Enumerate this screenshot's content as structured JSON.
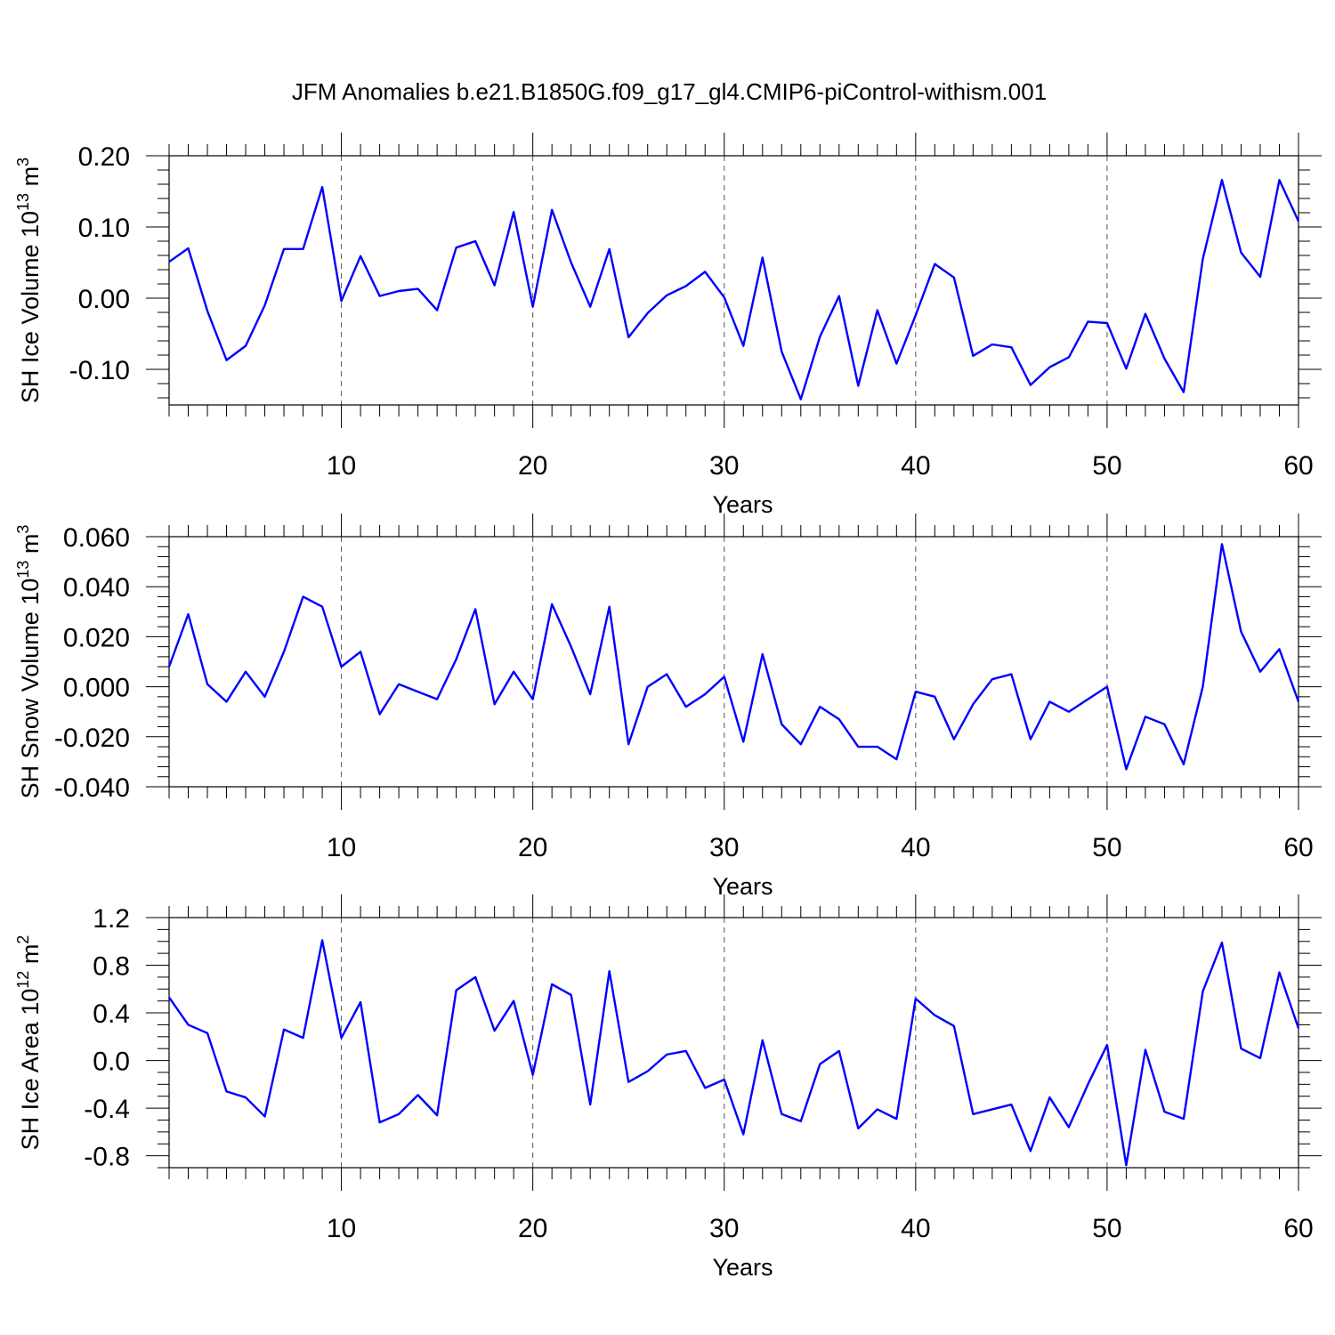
{
  "title": "JFM Anomalies b.e21.B1850G.f09_g17_gl4.CMIP6-piControl-withism.001",
  "colors": {
    "series": "#0000ff",
    "axes": "#000000",
    "grid": "#555555"
  },
  "chart_data": [
    {
      "type": "line",
      "ylabel": "SH Ice Volume 10",
      "ylabel_exponent": "13",
      "ylabel_unit": " m",
      "ylabel_unit_exponent": "3",
      "xlabel": "Years",
      "xlim": [
        1,
        60
      ],
      "ylim": [
        -0.15,
        0.2
      ],
      "x_ticks": [
        10,
        20,
        30,
        40,
        50,
        60
      ],
      "x_tick_labels": [
        "10",
        "20",
        "30",
        "40",
        "50",
        "60"
      ],
      "y_ticks": [
        -0.1,
        0.0,
        0.1,
        0.2
      ],
      "y_tick_labels": [
        "-0.10",
        "0.00",
        "0.10",
        "0.20"
      ],
      "y_minor_step": 0.02,
      "grid": "dashed vertical at major x ticks",
      "series": [
        {
          "x": [
            1,
            2,
            3,
            4,
            5,
            6,
            7,
            8,
            9,
            10,
            11,
            12,
            13,
            14,
            15,
            16,
            17,
            18,
            19,
            20,
            21,
            22,
            23,
            24,
            25,
            26,
            27,
            28,
            29,
            30,
            31,
            32,
            33,
            34,
            35,
            36,
            37,
            38,
            39,
            40,
            41,
            42,
            43,
            44,
            45,
            46,
            47,
            48,
            49,
            50,
            51,
            52,
            53,
            54,
            55,
            56,
            57,
            58,
            59,
            60
          ],
          "values": [
            0.051,
            0.07,
            -0.018,
            -0.087,
            -0.067,
            -0.01,
            0.069,
            0.069,
            0.156,
            -0.004,
            0.059,
            0.003,
            0.01,
            0.013,
            -0.017,
            0.071,
            0.08,
            0.018,
            0.121,
            -0.012,
            0.124,
            0.05,
            -0.012,
            0.069,
            -0.055,
            -0.021,
            0.004,
            0.017,
            0.037,
            0.001,
            -0.067,
            0.057,
            -0.075,
            -0.142,
            -0.054,
            0.003,
            -0.123,
            -0.017,
            -0.092,
            -0.024,
            0.048,
            0.029,
            -0.081,
            -0.065,
            -0.069,
            -0.122,
            -0.097,
            -0.083,
            -0.033,
            -0.035,
            -0.099,
            -0.022,
            -0.085,
            -0.132,
            0.055,
            0.166,
            0.064,
            0.03,
            0.166,
            0.108
          ]
        }
      ]
    },
    {
      "type": "line",
      "ylabel": "SH Snow Volume 10",
      "ylabel_exponent": "13",
      "ylabel_unit": " m",
      "ylabel_unit_exponent": "3",
      "xlabel": "Years",
      "xlim": [
        1,
        60
      ],
      "ylim": [
        -0.04,
        0.06
      ],
      "x_ticks": [
        10,
        20,
        30,
        40,
        50,
        60
      ],
      "x_tick_labels": [
        "10",
        "20",
        "30",
        "40",
        "50",
        "60"
      ],
      "y_ticks": [
        -0.04,
        -0.02,
        0.0,
        0.02,
        0.04,
        0.06
      ],
      "y_tick_labels": [
        "-0.040",
        "-0.020",
        "0.000",
        "0.020",
        "0.040",
        "0.060"
      ],
      "y_minor_step": 0.004,
      "grid": "dashed vertical at major x ticks",
      "series": [
        {
          "x": [
            1,
            2,
            3,
            4,
            5,
            6,
            7,
            8,
            9,
            10,
            11,
            12,
            13,
            14,
            15,
            16,
            17,
            18,
            19,
            20,
            21,
            22,
            23,
            24,
            25,
            26,
            27,
            28,
            29,
            30,
            31,
            32,
            33,
            34,
            35,
            36,
            37,
            38,
            39,
            40,
            41,
            42,
            43,
            44,
            45,
            46,
            47,
            48,
            49,
            50,
            51,
            52,
            53,
            54,
            55,
            56,
            57,
            58,
            59,
            60
          ],
          "values": [
            0.008,
            0.029,
            0.001,
            -0.006,
            0.006,
            -0.004,
            0.014,
            0.036,
            0.032,
            0.008,
            0.014,
            -0.011,
            0.001,
            -0.002,
            -0.005,
            0.011,
            0.031,
            -0.007,
            0.006,
            -0.005,
            0.033,
            0.016,
            -0.003,
            0.032,
            -0.023,
            0.0,
            0.005,
            -0.008,
            -0.003,
            0.004,
            -0.022,
            0.013,
            -0.015,
            -0.023,
            -0.008,
            -0.013,
            -0.024,
            -0.024,
            -0.029,
            -0.002,
            -0.004,
            -0.021,
            -0.007,
            0.003,
            0.005,
            -0.021,
            -0.006,
            -0.01,
            -0.005,
            0.0,
            -0.033,
            -0.012,
            -0.015,
            -0.031,
            0.0,
            0.057,
            0.022,
            0.006,
            0.015,
            -0.006
          ]
        }
      ]
    },
    {
      "type": "line",
      "ylabel": "SH Ice Area 10",
      "ylabel_exponent": "12",
      "ylabel_unit": " m",
      "ylabel_unit_exponent": "2",
      "xlabel": "Years",
      "xlim": [
        1,
        60
      ],
      "ylim": [
        -0.9,
        1.2
      ],
      "x_ticks": [
        10,
        20,
        30,
        40,
        50,
        60
      ],
      "x_tick_labels": [
        "10",
        "20",
        "30",
        "40",
        "50",
        "60"
      ],
      "y_ticks": [
        -0.8,
        -0.4,
        0.0,
        0.4,
        0.8,
        1.2
      ],
      "y_tick_labels": [
        "-0.8",
        "-0.4",
        "0.0",
        "0.4",
        "0.8",
        "1.2"
      ],
      "y_minor_step": 0.1,
      "grid": "dashed vertical at major x ticks",
      "series": [
        {
          "x": [
            1,
            2,
            3,
            4,
            5,
            6,
            7,
            8,
            9,
            10,
            11,
            12,
            13,
            14,
            15,
            16,
            17,
            18,
            19,
            20,
            21,
            22,
            23,
            24,
            25,
            26,
            27,
            28,
            29,
            30,
            31,
            32,
            33,
            34,
            35,
            36,
            37,
            38,
            39,
            40,
            41,
            42,
            43,
            44,
            45,
            46,
            47,
            48,
            49,
            50,
            51,
            52,
            53,
            54,
            55,
            56,
            57,
            58,
            59,
            60
          ],
          "values": [
            0.53,
            0.3,
            0.23,
            -0.26,
            -0.31,
            -0.47,
            0.26,
            0.19,
            1.01,
            0.19,
            0.49,
            -0.52,
            -0.45,
            -0.29,
            -0.46,
            0.59,
            0.7,
            0.25,
            0.5,
            -0.12,
            0.64,
            0.55,
            -0.37,
            0.75,
            -0.18,
            -0.09,
            0.05,
            0.08,
            -0.23,
            -0.16,
            -0.62,
            0.17,
            -0.45,
            -0.51,
            -0.03,
            0.08,
            -0.57,
            -0.41,
            -0.49,
            0.52,
            0.38,
            0.29,
            -0.45,
            -0.41,
            -0.37,
            -0.76,
            -0.31,
            -0.56,
            -0.2,
            0.13,
            -0.88,
            0.09,
            -0.43,
            -0.49,
            0.58,
            0.99,
            0.1,
            0.02,
            0.74,
            0.27
          ]
        }
      ]
    }
  ]
}
